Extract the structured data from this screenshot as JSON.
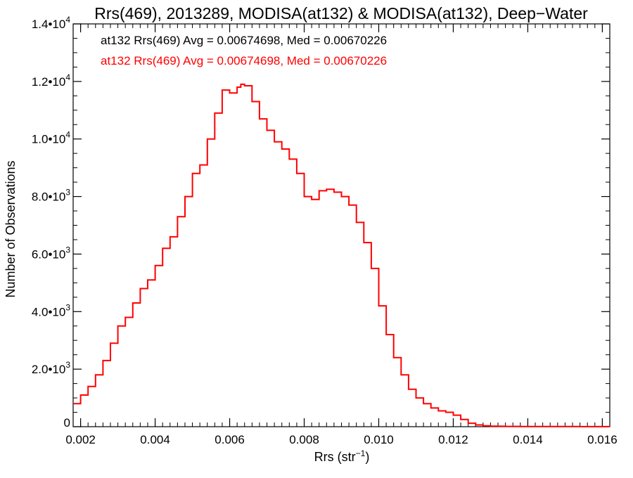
{
  "chart_data": {
    "type": "line",
    "title": "Rrs(469), 2013289, MODISA(at132) & MODISA(at132), Deep−Water",
    "xlabel": "Rrs (str⁻¹)",
    "ylabel": "Number of Observations",
    "xlim": [
      0.0018,
      0.0162
    ],
    "ylim": [
      0,
      14000
    ],
    "x_ticks": [
      0.002,
      0.004,
      0.006,
      0.008,
      0.01,
      0.012,
      0.014,
      0.016
    ],
    "x_tick_labels": [
      "0.002",
      "0.004",
      "0.006",
      "0.008",
      "0.010",
      "0.012",
      "0.014",
      "0.016"
    ],
    "y_ticks": [
      0,
      2000,
      4000,
      6000,
      8000,
      10000,
      12000,
      14000
    ],
    "y_tick_labels": [
      {
        "mantissa": "0",
        "exponent": ""
      },
      {
        "mantissa": "2.0•1",
        "exponent": "3"
      },
      {
        "mantissa": "4.0•1",
        "exponent": "3"
      },
      {
        "mantissa": "6.0•1",
        "exponent": "3"
      },
      {
        "mantissa": "8.0•1",
        "exponent": "3"
      },
      {
        "mantissa": "1.0•1",
        "exponent": "4"
      },
      {
        "mantissa": "1.2•1",
        "exponent": "4"
      },
      {
        "mantissa": "1.4•1",
        "exponent": "4"
      }
    ],
    "y_tick_suffix_base": "0",
    "annotations": [
      {
        "text": "at132 Rrs(469) Avg = 0.00674698, Med = 0.00670226",
        "color": "#000000"
      },
      {
        "text": "at132 Rrs(469) Avg = 0.00674698, Med = 0.00670226",
        "color": "#ff0000"
      }
    ],
    "series": [
      {
        "color": "#ff0000",
        "x": [
          0.0018,
          0.002,
          0.0022,
          0.0024,
          0.0026,
          0.0028,
          0.003,
          0.0032,
          0.0034,
          0.0036,
          0.0038,
          0.004,
          0.0042,
          0.0044,
          0.0046,
          0.0048,
          0.005,
          0.0052,
          0.0054,
          0.0056,
          0.0058,
          0.006,
          0.0062,
          0.0063,
          0.0064,
          0.0066,
          0.0068,
          0.007,
          0.0072,
          0.0074,
          0.0076,
          0.0078,
          0.008,
          0.0082,
          0.0084,
          0.0086,
          0.0088,
          0.009,
          0.0092,
          0.0094,
          0.0096,
          0.0098,
          0.01,
          0.0102,
          0.0104,
          0.0106,
          0.0108,
          0.011,
          0.0112,
          0.0114,
          0.0116,
          0.0118,
          0.012,
          0.0122,
          0.0124,
          0.0126,
          0.0128,
          0.013,
          0.0132,
          0.0134,
          0.0138,
          0.0142,
          0.0146,
          0.015,
          0.0154,
          0.0158,
          0.0162
        ],
        "y": [
          800,
          1100,
          1400,
          1800,
          2300,
          2900,
          3500,
          3800,
          4300,
          4800,
          5100,
          5600,
          6200,
          6600,
          7300,
          8000,
          8800,
          9100,
          10000,
          10900,
          11700,
          11600,
          11800,
          11900,
          11850,
          11300,
          10700,
          10300,
          9900,
          9650,
          9300,
          8800,
          8000,
          7900,
          8200,
          8250,
          8150,
          8000,
          7700,
          7100,
          6400,
          5500,
          4200,
          3200,
          2400,
          1800,
          1300,
          1000,
          800,
          650,
          550,
          500,
          400,
          250,
          120,
          60,
          30,
          20,
          15,
          10,
          8,
          6,
          5,
          4,
          3,
          2,
          2
        ]
      }
    ]
  }
}
